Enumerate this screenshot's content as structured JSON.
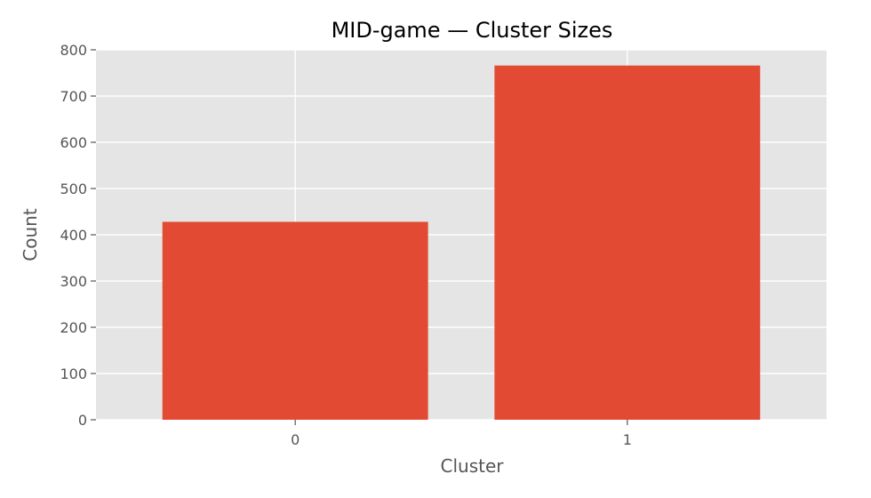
{
  "chart_data": {
    "type": "bar",
    "title": "MID-game — Cluster Sizes",
    "xlabel": "Cluster",
    "ylabel": "Count",
    "categories": [
      "0",
      "1"
    ],
    "values": [
      428,
      766
    ],
    "ylim": [
      0,
      800
    ],
    "yticks": [
      0,
      100,
      200,
      300,
      400,
      500,
      600,
      700,
      800
    ],
    "grid": true,
    "colors": {
      "bar": "#E24A33",
      "plot_background": "#E5E5E5",
      "grid": "#FFFFFF",
      "tick": "#555555"
    }
  }
}
